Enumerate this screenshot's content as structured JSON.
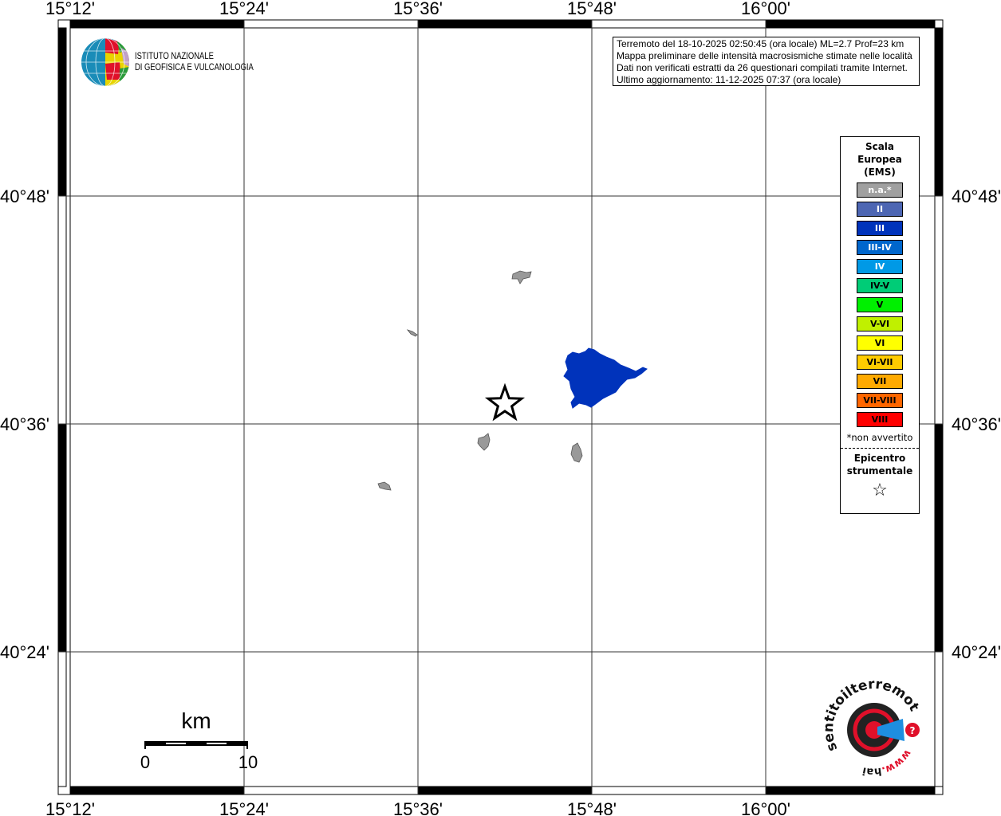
{
  "map": {
    "lon_labels": [
      "15°12'",
      "15°24'",
      "15°36'",
      "15°48'",
      "16°00'"
    ],
    "lat_labels": [
      "40°48'",
      "40°36'",
      "40°24'"
    ],
    "info": [
      "Terremoto del 18-10-2025 02:50:45 (ora locale) ML=2.7 Prof=23 km",
      "Mappa preliminare delle intensità macrosismiche stimate nelle località",
      "Dati non verificati estratti da 26 questionari compilati tramite Internet.",
      "Ultimo aggiornamento: 11-12-2025 07:37 (ora locale)"
    ],
    "scale_bar": {
      "unit": "km",
      "start": "0",
      "end": "10"
    },
    "intensity_area_color": "#0033bb",
    "na_area_color": "#999999"
  },
  "legend": {
    "title": [
      "Scala",
      "Europea",
      "(EMS)"
    ],
    "items": [
      {
        "label": "n.a.*",
        "color": "#a0a0a0",
        "text": "#ffffff"
      },
      {
        "label": "II",
        "color": "#4d66b3",
        "text": "#ffffff"
      },
      {
        "label": "III",
        "color": "#0033bb",
        "text": "#ffffff"
      },
      {
        "label": "III-IV",
        "color": "#0066cc",
        "text": "#ffffff"
      },
      {
        "label": "IV",
        "color": "#0099e6",
        "text": "#ffffff"
      },
      {
        "label": "IV-V",
        "color": "#00cc77",
        "text": "#000000"
      },
      {
        "label": "V",
        "color": "#00f000",
        "text": "#000000"
      },
      {
        "label": "V-VI",
        "color": "#c0f000",
        "text": "#000000"
      },
      {
        "label": "VI",
        "color": "#ffff00",
        "text": "#000000"
      },
      {
        "label": "VI-VII",
        "color": "#ffcc00",
        "text": "#000000"
      },
      {
        "label": "VII",
        "color": "#ffaa00",
        "text": "#000000"
      },
      {
        "label": "VII-VIII",
        "color": "#ff6600",
        "text": "#000000"
      },
      {
        "label": "VIII",
        "color": "#ff0000",
        "text": "#000000"
      }
    ],
    "note": "*non avvertito",
    "epicenter_label": [
      "Epicentro",
      "strumentale"
    ],
    "epicenter_icon": "star-outline"
  },
  "logos": {
    "ingv": [
      "ISTITUTO NAZIONALE",
      "DI GEOFISICA E VULCANOLOGIA"
    ],
    "hsit": "www.haisentitoilterremoto.it"
  }
}
